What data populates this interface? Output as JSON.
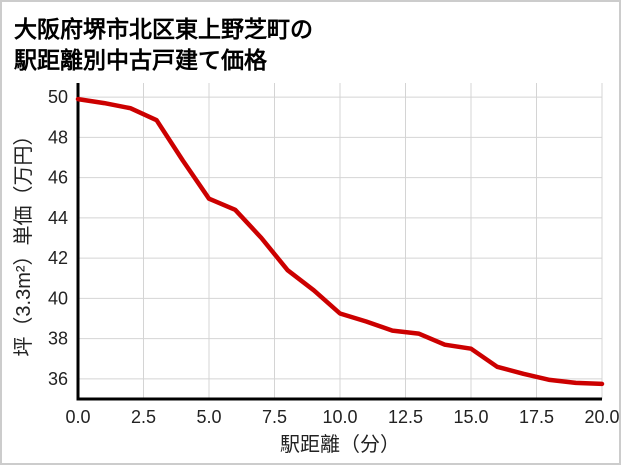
{
  "title": {
    "line1": "大阪府堺市北区東上野芝町の",
    "line2": "駅距離別中古戸建て価格"
  },
  "colors": {
    "line": "#cc0000",
    "grid": "#d4d4d4",
    "axis": "#000000",
    "text": "#222222",
    "title_text": "#000000",
    "background": "#ffffff",
    "border": "#cccccc"
  },
  "chart_data": {
    "type": "line",
    "title": "大阪府堺市北区東上野芝町の駅距離別中古戸建て価格",
    "xlabel": "駅距離（分）",
    "ylabel": "坪（3.3m²）単価（万円）",
    "x": [
      0,
      1,
      2,
      3,
      4,
      5,
      6,
      7,
      8,
      9,
      10,
      11,
      12,
      13,
      14,
      15,
      16,
      17,
      18,
      19,
      20
    ],
    "values": [
      49.9,
      49.7,
      49.45,
      48.85,
      46.85,
      44.95,
      44.4,
      43.0,
      41.4,
      40.4,
      39.25,
      38.85,
      38.4,
      38.25,
      37.7,
      37.5,
      36.6,
      36.25,
      35.95,
      35.8,
      35.75
    ],
    "xlim": [
      0,
      20
    ],
    "ylim": [
      35,
      50.7
    ],
    "xtick_labels": [
      "0.0",
      "2.5",
      "5.0",
      "7.5",
      "10.0",
      "12.5",
      "15.0",
      "17.5",
      "20.0"
    ],
    "xtick_values": [
      0,
      2.5,
      5,
      7.5,
      10,
      12.5,
      15,
      17.5,
      20
    ],
    "ytick_labels": [
      "36",
      "38",
      "40",
      "42",
      "44",
      "46",
      "48",
      "50"
    ],
    "ytick_values": [
      36,
      38,
      40,
      42,
      44,
      46,
      48,
      50
    ],
    "grid": true,
    "legend": "none"
  }
}
